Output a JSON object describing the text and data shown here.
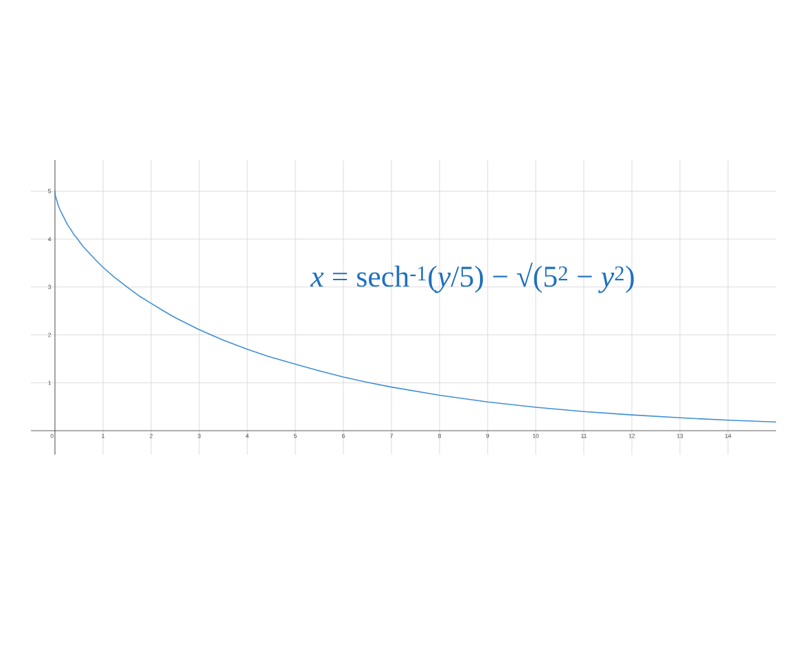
{
  "chart_data": {
    "type": "line",
    "x": [
      0,
      0.01,
      0.04,
      0.07,
      0.11,
      0.16,
      0.21,
      0.26,
      0.33,
      0.39,
      0.47,
      0.58,
      0.72,
      0.86,
      1,
      1.24,
      1.5,
      1.77,
      2,
      2.26,
      2.5,
      3,
      3.5,
      4,
      4.44,
      5,
      5.5,
      6,
      6.5,
      7,
      8,
      9,
      10,
      11,
      12,
      13,
      14,
      15
    ],
    "values": [
      5,
      4.9,
      4.8,
      4.7,
      4.6,
      4.5,
      4.4,
      4.3,
      4.2,
      4.1,
      4.0,
      3.85,
      3.7,
      3.55,
      3.41,
      3.2,
      3.0,
      2.8,
      2.66,
      2.5,
      2.36,
      2.11,
      1.89,
      1.7,
      1.55,
      1.39,
      1.25,
      1.12,
      1.01,
      0.91,
      0.74,
      0.6,
      0.49,
      0.4,
      0.33,
      0.27,
      0.22,
      0.18
    ],
    "color": "#3f8fd2",
    "xlim": [
      -0.5,
      15
    ],
    "ylim": [
      -0.5,
      5.65
    ],
    "xticks": [
      0,
      1,
      2,
      3,
      4,
      5,
      6,
      7,
      8,
      9,
      10,
      11,
      12,
      13,
      14
    ],
    "yticks": [
      1,
      2,
      3,
      4,
      5
    ],
    "grid": true,
    "annotations": [
      "*x* = sech$^{-1}$(*y*/5) − √(5$^{2}$ − *y*$^{2}$)"
    ]
  }
}
